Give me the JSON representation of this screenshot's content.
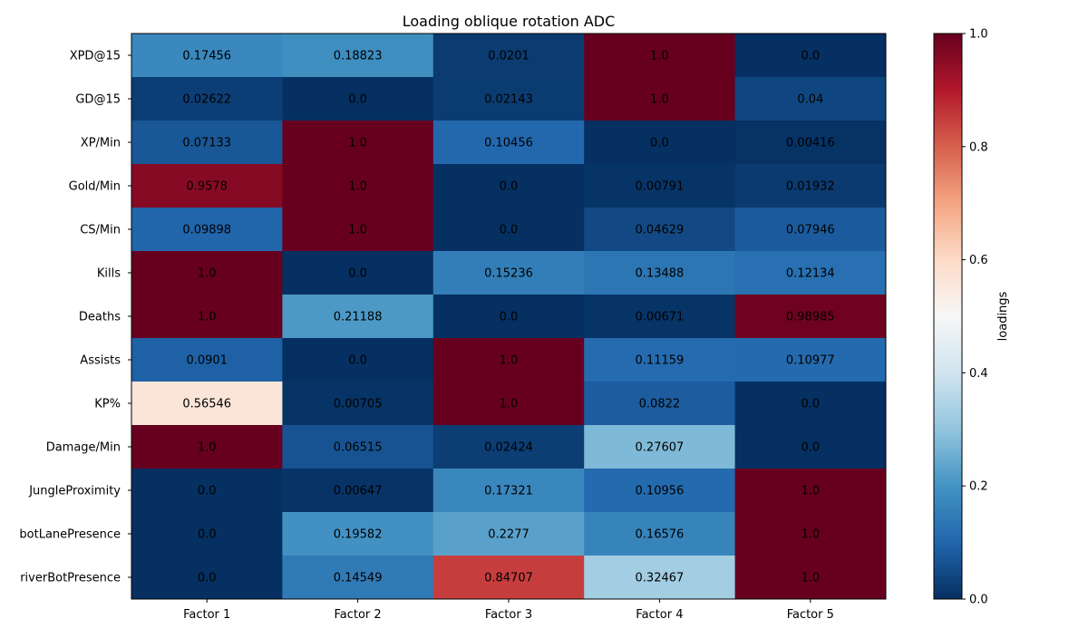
{
  "chart_data": {
    "type": "heatmap",
    "title": "Loading oblique rotation ADC",
    "xlabel": "",
    "ylabel": "",
    "colormap": "RdBu_r",
    "vmin": 0.0,
    "vmax": 1.0,
    "colorbar": {
      "label": "loadings",
      "ticks": [
        "0.0",
        "0.2",
        "0.4",
        "0.6",
        "0.8",
        "1.0"
      ]
    },
    "columns": [
      "Factor 1",
      "Factor 2",
      "Factor 3",
      "Factor 4",
      "Factor 5"
    ],
    "rows": [
      "XPD@15",
      "GD@15",
      "XP/Min",
      "Gold/Min",
      "CS/Min",
      "Kills",
      "Deaths",
      "Assists",
      "KP%",
      "Damage/Min",
      "JungleProximity",
      "botLanePresence",
      "riverBotPresence"
    ],
    "cell_labels": [
      [
        "0.17456",
        "0.18823",
        "0.0201",
        "1.0",
        "0.0"
      ],
      [
        "0.02622",
        "0.0",
        "0.02143",
        "1.0",
        "0.04"
      ],
      [
        "0.07133",
        "1.0",
        "0.10456",
        "0.0",
        "0.00416"
      ],
      [
        "0.9578",
        "1.0",
        "0.0",
        "0.00791",
        "0.01932"
      ],
      [
        "0.09898",
        "1.0",
        "0.0",
        "0.04629",
        "0.07946"
      ],
      [
        "1.0",
        "0.0",
        "0.15236",
        "0.13488",
        "0.12134"
      ],
      [
        "1.0",
        "0.21188",
        "0.0",
        "0.00671",
        "0.98985"
      ],
      [
        "0.0901",
        "0.0",
        "1.0",
        "0.11159",
        "0.10977"
      ],
      [
        "0.56546",
        "0.00705",
        "1.0",
        "0.0822",
        "0.0"
      ],
      [
        "1.0",
        "0.06515",
        "0.02424",
        "0.27607",
        "0.0"
      ],
      [
        "0.0",
        "0.00647",
        "0.17321",
        "0.10956",
        "1.0"
      ],
      [
        "0.0",
        "0.19582",
        "0.2277",
        "0.16576",
        "1.0"
      ],
      [
        "0.0",
        "0.14549",
        "0.84707",
        "0.32467",
        "1.0"
      ]
    ]
  }
}
